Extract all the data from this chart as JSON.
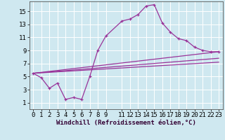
{
  "xlabel": "Windchill (Refroidissement éolien,°C)",
  "bg_color": "#cfe8f0",
  "line_color": "#993399",
  "grid_color": "#ffffff",
  "curve1_x": [
    0,
    1,
    2,
    3,
    4,
    5,
    6,
    7,
    8,
    9,
    11,
    12,
    13,
    14,
    15,
    16,
    17,
    18,
    19,
    20,
    21,
    22,
    23
  ],
  "curve1_y": [
    5.5,
    4.8,
    3.2,
    4.0,
    1.5,
    1.8,
    1.5,
    5.0,
    9.0,
    11.2,
    13.5,
    13.8,
    14.5,
    15.8,
    16.0,
    13.2,
    11.8,
    10.8,
    10.5,
    9.5,
    9.0,
    8.8,
    8.8
  ],
  "line2_x": [
    0,
    23
  ],
  "line2_y": [
    5.5,
    8.8
  ],
  "line3_x": [
    0,
    23
  ],
  "line3_y": [
    5.5,
    7.8
  ],
  "line4_x": [
    0,
    23
  ],
  "line4_y": [
    5.5,
    7.2
  ],
  "xlim": [
    -0.5,
    23.5
  ],
  "ylim": [
    0,
    16.5
  ],
  "yticks": [
    1,
    3,
    5,
    7,
    9,
    11,
    13,
    15
  ],
  "xticks": [
    0,
    1,
    2,
    3,
    4,
    5,
    6,
    7,
    8,
    9,
    11,
    12,
    13,
    14,
    15,
    16,
    17,
    18,
    19,
    20,
    21,
    22,
    23
  ],
  "tick_fontsize": 6.5,
  "xlabel_fontsize": 6.5
}
